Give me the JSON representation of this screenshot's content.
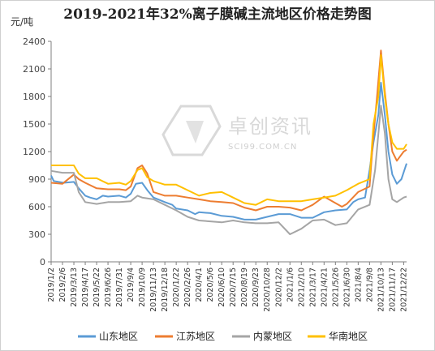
{
  "chart_data": {
    "type": "line",
    "title": "2019-2021年32%离子膜碱主流地区价格走势图",
    "ylabel": "元/吨",
    "ylim": [
      0,
      2400
    ],
    "yticks": [
      0,
      300,
      600,
      900,
      1200,
      1500,
      1800,
      2100,
      2400
    ],
    "grid": false,
    "legend_position": "bottom",
    "x_ticks": [
      "2019/1/2",
      "2019/2/6",
      "2019/3/13",
      "2019/4/17",
      "2019/5/22",
      "2019/6/26",
      "2019/7/31",
      "2019/9/4",
      "2019/10/9",
      "2019/11/13",
      "2019/12/18",
      "2020/1/22",
      "2020/2/26",
      "2020/4/1",
      "2020/5/6",
      "2020/6/10",
      "2020/7/15",
      "2020/8/19",
      "2020/9/23",
      "2020/10/28",
      "2020/12/2",
      "2021/1/6",
      "2021/2/10",
      "2021/3/17",
      "2021/4/21",
      "2021/5/26",
      "2021/6/30",
      "2021/8/4",
      "2021/9/8",
      "2021/10/13",
      "2021/11/17",
      "2021/12/22"
    ],
    "series": [
      {
        "name": "山东地区",
        "color": "#5b9bd5",
        "points": [
          [
            "2019-01-02",
            940
          ],
          [
            "2019-01-10",
            880
          ],
          [
            "2019-02-10",
            860
          ],
          [
            "2019-03-13",
            870
          ],
          [
            "2019-03-28",
            800
          ],
          [
            "2019-04-17",
            720
          ],
          [
            "2019-05-02",
            700
          ],
          [
            "2019-05-22",
            680
          ],
          [
            "2019-06-10",
            720
          ],
          [
            "2019-06-26",
            710
          ],
          [
            "2019-07-31",
            720
          ],
          [
            "2019-08-20",
            700
          ],
          [
            "2019-09-04",
            740
          ],
          [
            "2019-09-20",
            850
          ],
          [
            "2019-10-09",
            860
          ],
          [
            "2019-10-25",
            780
          ],
          [
            "2019-11-13",
            700
          ],
          [
            "2019-12-18",
            650
          ],
          [
            "2020-01-10",
            620
          ],
          [
            "2020-01-22",
            580
          ],
          [
            "2020-02-26",
            560
          ],
          [
            "2020-03-20",
            520
          ],
          [
            "2020-04-01",
            540
          ],
          [
            "2020-05-06",
            530
          ],
          [
            "2020-06-10",
            500
          ],
          [
            "2020-07-15",
            490
          ],
          [
            "2020-08-19",
            460
          ],
          [
            "2020-09-23",
            460
          ],
          [
            "2020-10-28",
            490
          ],
          [
            "2020-12-02",
            520
          ],
          [
            "2021-01-06",
            520
          ],
          [
            "2021-02-10",
            480
          ],
          [
            "2021-03-17",
            480
          ],
          [
            "2021-04-21",
            540
          ],
          [
            "2021-05-26",
            560
          ],
          [
            "2021-06-30",
            570
          ],
          [
            "2021-07-20",
            650
          ],
          [
            "2021-08-04",
            680
          ],
          [
            "2021-08-25",
            700
          ],
          [
            "2021-09-08",
            1000
          ],
          [
            "2021-09-20",
            1300
          ],
          [
            "2021-10-05",
            1600
          ],
          [
            "2021-10-13",
            1950
          ],
          [
            "2021-10-25",
            1600
          ],
          [
            "2021-11-05",
            1200
          ],
          [
            "2021-11-17",
            950
          ],
          [
            "2021-12-01",
            850
          ],
          [
            "2021-12-15",
            900
          ],
          [
            "2021-12-31",
            1070
          ]
        ]
      },
      {
        "name": "江苏地区",
        "color": "#ed7d31",
        "points": [
          [
            "2019-01-02",
            860
          ],
          [
            "2019-02-06",
            850
          ],
          [
            "2019-03-13",
            950
          ],
          [
            "2019-03-28",
            900
          ],
          [
            "2019-04-17",
            860
          ],
          [
            "2019-05-22",
            800
          ],
          [
            "2019-06-26",
            790
          ],
          [
            "2019-07-31",
            790
          ],
          [
            "2019-08-20",
            780
          ],
          [
            "2019-09-04",
            820
          ],
          [
            "2019-09-25",
            1020
          ],
          [
            "2019-10-09",
            1050
          ],
          [
            "2019-10-25",
            960
          ],
          [
            "2019-11-13",
            760
          ],
          [
            "2019-12-18",
            720
          ],
          [
            "2020-01-22",
            720
          ],
          [
            "2020-02-26",
            700
          ],
          [
            "2020-04-01",
            680
          ],
          [
            "2020-05-06",
            660
          ],
          [
            "2020-06-10",
            650
          ],
          [
            "2020-07-15",
            640
          ],
          [
            "2020-08-19",
            590
          ],
          [
            "2020-09-23",
            560
          ],
          [
            "2020-10-28",
            600
          ],
          [
            "2020-12-02",
            600
          ],
          [
            "2021-01-06",
            590
          ],
          [
            "2021-02-10",
            560
          ],
          [
            "2021-03-17",
            620
          ],
          [
            "2021-04-21",
            710
          ],
          [
            "2021-05-26",
            640
          ],
          [
            "2021-06-15",
            600
          ],
          [
            "2021-06-30",
            630
          ],
          [
            "2021-08-04",
            760
          ],
          [
            "2021-09-08",
            820
          ],
          [
            "2021-09-18",
            1300
          ],
          [
            "2021-10-01",
            1800
          ],
          [
            "2021-10-13",
            2300
          ],
          [
            "2021-10-25",
            1850
          ],
          [
            "2021-11-05",
            1500
          ],
          [
            "2021-11-17",
            1200
          ],
          [
            "2021-12-01",
            1100
          ],
          [
            "2021-12-22",
            1200
          ],
          [
            "2021-12-31",
            1220
          ]
        ]
      },
      {
        "name": "内蒙地区",
        "color": "#a5a5a5",
        "points": [
          [
            "2019-01-02",
            990
          ],
          [
            "2019-02-06",
            970
          ],
          [
            "2019-03-13",
            970
          ],
          [
            "2019-03-28",
            760
          ],
          [
            "2019-04-17",
            650
          ],
          [
            "2019-05-22",
            630
          ],
          [
            "2019-06-26",
            650
          ],
          [
            "2019-07-31",
            650
          ],
          [
            "2019-09-04",
            660
          ],
          [
            "2019-09-25",
            720
          ],
          [
            "2019-10-09",
            700
          ],
          [
            "2019-11-13",
            680
          ],
          [
            "2019-12-18",
            620
          ],
          [
            "2020-01-22",
            560
          ],
          [
            "2020-02-26",
            490
          ],
          [
            "2020-04-01",
            450
          ],
          [
            "2020-05-06",
            440
          ],
          [
            "2020-06-10",
            430
          ],
          [
            "2020-07-15",
            450
          ],
          [
            "2020-08-19",
            430
          ],
          [
            "2020-09-23",
            420
          ],
          [
            "2020-10-28",
            420
          ],
          [
            "2020-12-02",
            430
          ],
          [
            "2021-01-06",
            300
          ],
          [
            "2021-02-10",
            360
          ],
          [
            "2021-03-17",
            450
          ],
          [
            "2021-04-21",
            460
          ],
          [
            "2021-05-26",
            400
          ],
          [
            "2021-06-30",
            420
          ],
          [
            "2021-08-04",
            570
          ],
          [
            "2021-09-08",
            620
          ],
          [
            "2021-09-25",
            1000
          ],
          [
            "2021-10-13",
            1700
          ],
          [
            "2021-10-25",
            1400
          ],
          [
            "2021-11-05",
            900
          ],
          [
            "2021-11-17",
            680
          ],
          [
            "2021-12-01",
            650
          ],
          [
            "2021-12-22",
            700
          ],
          [
            "2021-12-31",
            710
          ]
        ]
      },
      {
        "name": "华南地区",
        "color": "#ffc000",
        "points": [
          [
            "2019-01-02",
            1050
          ],
          [
            "2019-02-06",
            1050
          ],
          [
            "2019-03-13",
            1050
          ],
          [
            "2019-03-28",
            960
          ],
          [
            "2019-04-17",
            910
          ],
          [
            "2019-05-22",
            910
          ],
          [
            "2019-06-26",
            850
          ],
          [
            "2019-07-31",
            860
          ],
          [
            "2019-08-20",
            840
          ],
          [
            "2019-09-04",
            880
          ],
          [
            "2019-09-25",
            1000
          ],
          [
            "2019-10-09",
            1020
          ],
          [
            "2019-10-25",
            920
          ],
          [
            "2019-11-13",
            880
          ],
          [
            "2019-12-18",
            840
          ],
          [
            "2020-01-22",
            840
          ],
          [
            "2020-02-26",
            780
          ],
          [
            "2020-04-01",
            720
          ],
          [
            "2020-05-06",
            750
          ],
          [
            "2020-06-10",
            760
          ],
          [
            "2020-07-15",
            700
          ],
          [
            "2020-08-19",
            640
          ],
          [
            "2020-09-23",
            620
          ],
          [
            "2020-10-28",
            680
          ],
          [
            "2020-12-02",
            660
          ],
          [
            "2021-01-06",
            660
          ],
          [
            "2021-02-10",
            660
          ],
          [
            "2021-03-17",
            680
          ],
          [
            "2021-04-21",
            700
          ],
          [
            "2021-05-26",
            720
          ],
          [
            "2021-06-30",
            780
          ],
          [
            "2021-08-04",
            850
          ],
          [
            "2021-09-08",
            900
          ],
          [
            "2021-09-20",
            1500
          ],
          [
            "2021-10-05",
            1800
          ],
          [
            "2021-10-13",
            2250
          ],
          [
            "2021-10-25",
            1800
          ],
          [
            "2021-11-05",
            1500
          ],
          [
            "2021-11-17",
            1300
          ],
          [
            "2021-12-01",
            1230
          ],
          [
            "2021-12-22",
            1230
          ],
          [
            "2021-12-31",
            1280
          ]
        ]
      }
    ]
  },
  "watermark": {
    "text_cn": "卓创资讯",
    "text_en": "SCI99.COM.CN",
    "color": "#d0d0d0"
  }
}
